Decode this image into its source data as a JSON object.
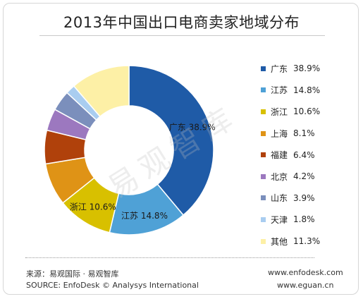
{
  "chart_data": {
    "type": "pie",
    "style": "donut",
    "title": "2013年中国出口电商卖家地域分布",
    "categories": [
      "广东",
      "江苏",
      "浙江",
      "上海",
      "福建",
      "北京",
      "山东",
      "天津",
      "其他"
    ],
    "values": [
      38.9,
      14.8,
      10.6,
      8.1,
      6.4,
      4.2,
      3.9,
      1.8,
      11.3
    ],
    "value_labels": [
      "38.9%",
      "14.8%",
      "10.6%",
      "8.1%",
      "6.4%",
      "4.2%",
      "3.9%",
      "1.8%",
      "11.3%"
    ],
    "colors": [
      "#1f5ba7",
      "#4fa1d6",
      "#d8c000",
      "#df9316",
      "#b0410b",
      "#9c78bf",
      "#7b8fbc",
      "#a9cdf0",
      "#fdf0a6"
    ],
    "slice_labels": [
      {
        "text": "广东  38.9%",
        "index": 0
      },
      {
        "text": "江苏  14.8%",
        "index": 1
      },
      {
        "text": "浙江  10.6%",
        "index": 2
      }
    ],
    "legend_position": "right"
  },
  "watermark": "易观智库",
  "footer": {
    "source_cn": "来源：易观国际 · 易观智库",
    "source_en": "SOURCE: EnfoDesk © Analysys International",
    "url_1": "www.enfodesk.com",
    "url_2": "www.eguan.cn"
  }
}
